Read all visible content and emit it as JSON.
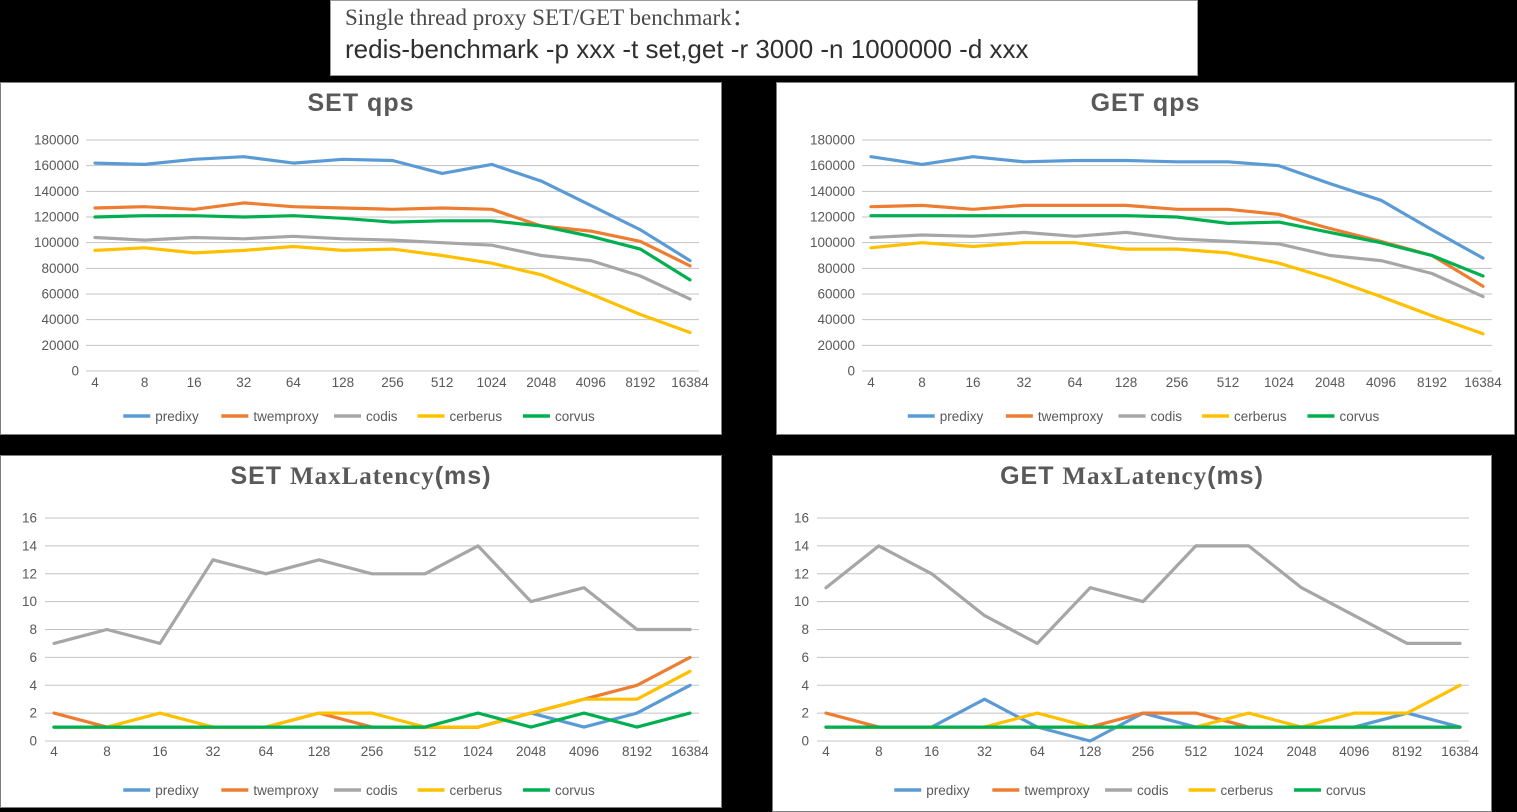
{
  "header": {
    "line1": "Single thread proxy SET/GET benchmark：",
    "line2": "redis-benchmark -p xxx -t set,get -r 3000 -n 1000000 -d xxx"
  },
  "palette": {
    "predixy": "#5B9BD5",
    "twemproxy": "#ED7D31",
    "codis": "#A6A6A6",
    "cerberus": "#FFC000",
    "corvus": "#00B050",
    "gridline": "#C3C3C3",
    "axis_text": "#595959",
    "title_text": "#595959"
  },
  "chart_data": [
    {
      "id": "set-qps",
      "type": "line",
      "kind": "qps",
      "title_segments": [
        {
          "text": "SET  qps",
          "style": "bold"
        }
      ],
      "categories": [
        "4",
        "8",
        "16",
        "32",
        "64",
        "128",
        "256",
        "512",
        "1024",
        "2048",
        "4096",
        "8192",
        "16384"
      ],
      "ylim": [
        0,
        180000
      ],
      "ytick": 20000,
      "grid": true,
      "legend_position": "bottom",
      "series": [
        {
          "name": "predixy",
          "color": "#5B9BD5",
          "values": [
            162000,
            161000,
            165000,
            167000,
            162000,
            165000,
            164000,
            154000,
            161000,
            148000,
            129000,
            110000,
            86000
          ]
        },
        {
          "name": "twemproxy",
          "color": "#ED7D31",
          "values": [
            127000,
            128000,
            126000,
            131000,
            128000,
            127000,
            126000,
            127000,
            126000,
            113000,
            109000,
            101000,
            82000
          ]
        },
        {
          "name": "codis",
          "color": "#A6A6A6",
          "values": [
            104000,
            102000,
            104000,
            103000,
            105000,
            103000,
            102000,
            100000,
            98000,
            90000,
            86000,
            74000,
            56000
          ]
        },
        {
          "name": "cerberus",
          "color": "#FFC000",
          "values": [
            94000,
            96000,
            92000,
            94000,
            97000,
            94000,
            95000,
            90000,
            84000,
            75000,
            60000,
            44000,
            30000
          ]
        },
        {
          "name": "corvus",
          "color": "#00B050",
          "values": [
            120000,
            121000,
            121000,
            120000,
            121000,
            119000,
            116000,
            117000,
            117000,
            113000,
            105000,
            95000,
            71000
          ]
        }
      ]
    },
    {
      "id": "get-qps",
      "type": "line",
      "kind": "qps",
      "title_segments": [
        {
          "text": "GET  qps",
          "style": "bold"
        }
      ],
      "categories": [
        "4",
        "8",
        "16",
        "32",
        "64",
        "128",
        "256",
        "512",
        "1024",
        "2048",
        "4096",
        "8192",
        "16384"
      ],
      "ylim": [
        0,
        180000
      ],
      "ytick": 20000,
      "grid": true,
      "legend_position": "bottom",
      "series": [
        {
          "name": "predixy",
          "color": "#5B9BD5",
          "values": [
            167000,
            161000,
            167000,
            163000,
            164000,
            164000,
            163000,
            163000,
            160000,
            146000,
            133000,
            110000,
            88000
          ]
        },
        {
          "name": "twemproxy",
          "color": "#ED7D31",
          "values": [
            128000,
            129000,
            126000,
            129000,
            129000,
            129000,
            126000,
            126000,
            122000,
            111000,
            101000,
            90000,
            66000
          ]
        },
        {
          "name": "codis",
          "color": "#A6A6A6",
          "values": [
            104000,
            106000,
            105000,
            108000,
            105000,
            108000,
            103000,
            101000,
            99000,
            90000,
            86000,
            76000,
            58000
          ]
        },
        {
          "name": "cerberus",
          "color": "#FFC000",
          "values": [
            96000,
            100000,
            97000,
            100000,
            100000,
            95000,
            95000,
            92000,
            84000,
            72000,
            58000,
            43000,
            29000
          ]
        },
        {
          "name": "corvus",
          "color": "#00B050",
          "values": [
            121000,
            121000,
            121000,
            121000,
            121000,
            121000,
            120000,
            115000,
            116000,
            108000,
            100000,
            90000,
            74000
          ]
        }
      ]
    },
    {
      "id": "set-maxlatency",
      "type": "line",
      "kind": "latency",
      "title_segments": [
        {
          "text": "SET ",
          "style": "bold"
        },
        {
          "text": "MaxLatency",
          "style": "serif"
        },
        {
          "text": "(ms)",
          "style": "bold"
        }
      ],
      "categories": [
        "4",
        "8",
        "16",
        "32",
        "64",
        "128",
        "256",
        "512",
        "1024",
        "2048",
        "4096",
        "8192",
        "16384"
      ],
      "ylim": [
        0,
        16
      ],
      "ytick": 2,
      "grid": true,
      "legend_position": "bottom",
      "series": [
        {
          "name": "predixy",
          "color": "#5B9BD5",
          "values": [
            1,
            1,
            1,
            1,
            1,
            1,
            1,
            1,
            1,
            2,
            1,
            2,
            4
          ]
        },
        {
          "name": "twemproxy",
          "color": "#ED7D31",
          "values": [
            2,
            1,
            1,
            1,
            1,
            2,
            1,
            1,
            1,
            2,
            3,
            4,
            6
          ]
        },
        {
          "name": "codis",
          "color": "#A6A6A6",
          "values": [
            7,
            8,
            7,
            13,
            12,
            13,
            12,
            12,
            14,
            10,
            11,
            8,
            8
          ]
        },
        {
          "name": "cerberus",
          "color": "#FFC000",
          "values": [
            1,
            1,
            2,
            1,
            1,
            2,
            2,
            1,
            1,
            2,
            3,
            3,
            5
          ]
        },
        {
          "name": "corvus",
          "color": "#00B050",
          "values": [
            1,
            1,
            1,
            1,
            1,
            1,
            1,
            1,
            2,
            1,
            2,
            1,
            2
          ]
        }
      ]
    },
    {
      "id": "get-maxlatency",
      "type": "line",
      "kind": "latency",
      "title_segments": [
        {
          "text": "GET ",
          "style": "bold"
        },
        {
          "text": "MaxLatency",
          "style": "serif"
        },
        {
          "text": "(ms)",
          "style": "bold"
        }
      ],
      "categories": [
        "4",
        "8",
        "16",
        "32",
        "64",
        "128",
        "256",
        "512",
        "1024",
        "2048",
        "4096",
        "8192",
        "16384"
      ],
      "ylim": [
        0,
        16
      ],
      "ytick": 2,
      "grid": true,
      "legend_position": "bottom",
      "series": [
        {
          "name": "predixy",
          "color": "#5B9BD5",
          "values": [
            1,
            1,
            1,
            3,
            1,
            0,
            2,
            1,
            1,
            1,
            1,
            2,
            1
          ]
        },
        {
          "name": "twemproxy",
          "color": "#ED7D31",
          "values": [
            2,
            1,
            1,
            1,
            1,
            1,
            2,
            2,
            1,
            1,
            1,
            1,
            1
          ]
        },
        {
          "name": "codis",
          "color": "#A6A6A6",
          "values": [
            11,
            14,
            12,
            9,
            7,
            11,
            10,
            14,
            14,
            11,
            9,
            7,
            7
          ]
        },
        {
          "name": "cerberus",
          "color": "#FFC000",
          "values": [
            1,
            1,
            1,
            1,
            2,
            1,
            1,
            1,
            2,
            1,
            2,
            2,
            4
          ]
        },
        {
          "name": "corvus",
          "color": "#00B050",
          "values": [
            1,
            1,
            1,
            1,
            1,
            1,
            1,
            1,
            1,
            1,
            1,
            1,
            1
          ]
        }
      ]
    }
  ]
}
